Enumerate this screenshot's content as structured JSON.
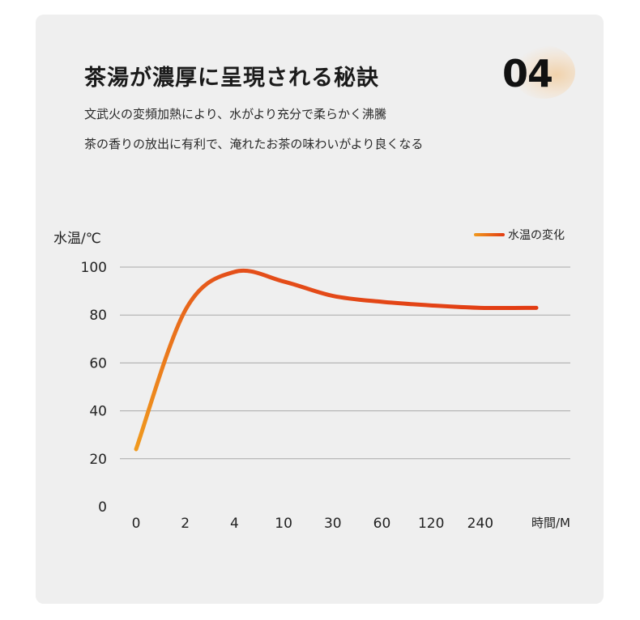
{
  "header": {
    "title": "茶湯が濃厚に呈現される秘訣",
    "number": "04",
    "desc_line1": "文武火の変頻加熱により、水がより充分で柔らかく沸騰",
    "desc_line2": "茶の香りの放出に有利で、淹れたお茶の味わいがより良くなる"
  },
  "chart_data": {
    "type": "line",
    "ylabel": "水温/℃",
    "xlabel": "時間/M",
    "categories": [
      "0",
      "2",
      "4",
      "10",
      "30",
      "60",
      "120",
      "240"
    ],
    "yticks": [
      0,
      20,
      40,
      60,
      80,
      100
    ],
    "ylim": [
      0,
      100
    ],
    "series": [
      {
        "name": "水温の変化",
        "points": [
          {
            "x": "0",
            "y": 24
          },
          {
            "x": "2",
            "y": 82
          },
          {
            "x": "4",
            "y": 98
          },
          {
            "x": "10",
            "y": 94
          },
          {
            "x": "30",
            "y": 88
          },
          {
            "x": "60",
            "y": 85.5
          },
          {
            "x": "120",
            "y": 84
          },
          {
            "x": "240",
            "y": 83
          },
          {
            "x": "end",
            "y": 83
          }
        ]
      }
    ],
    "grid": true,
    "legend": "top-right",
    "colors": {
      "line_start": "#f09a1e",
      "line_end": "#e23a12",
      "grid": "#a8a8a8"
    }
  }
}
